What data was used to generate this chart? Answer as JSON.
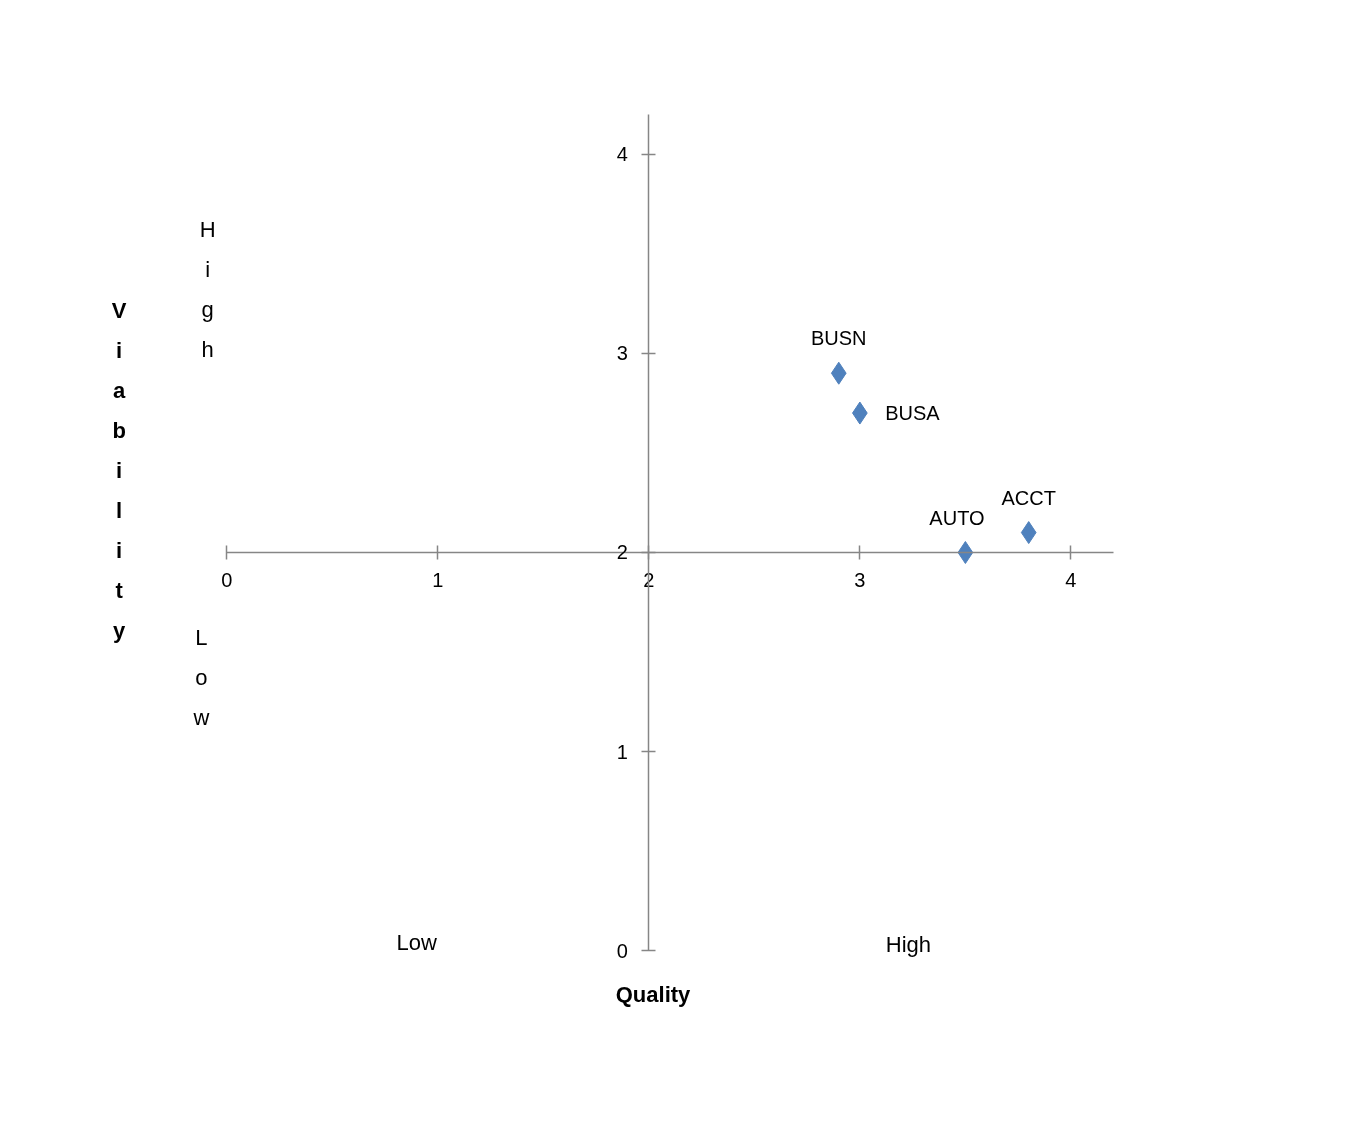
{
  "chart_data": {
    "type": "scatter",
    "xlabel": "Quality",
    "ylabel": "Viability",
    "x": [
      2.9,
      3.0,
      3.5,
      3.8
    ],
    "values": [
      2.9,
      2.7,
      2.0,
      2.1
    ],
    "color": "#4f81bd",
    "marker": "diamond",
    "xlim": [
      0,
      4.2
    ],
    "ylim": [
      0,
      4.2
    ],
    "xticks": [
      0,
      1,
      2,
      3,
      4
    ],
    "yticks": [
      0,
      1,
      2,
      3,
      4
    ],
    "grid": false,
    "annotations": [
      {
        "text": "BUSN",
        "x": 2.9,
        "y": 2.9
      },
      {
        "text": "BUSA",
        "x": 3.0,
        "y": 2.7
      },
      {
        "text": "AUTO",
        "x": 3.5,
        "y": 2.0
      },
      {
        "text": "ACCT",
        "x": 3.8,
        "y": 2.1
      },
      "High",
      "Low",
      "Low",
      "High"
    ]
  }
}
